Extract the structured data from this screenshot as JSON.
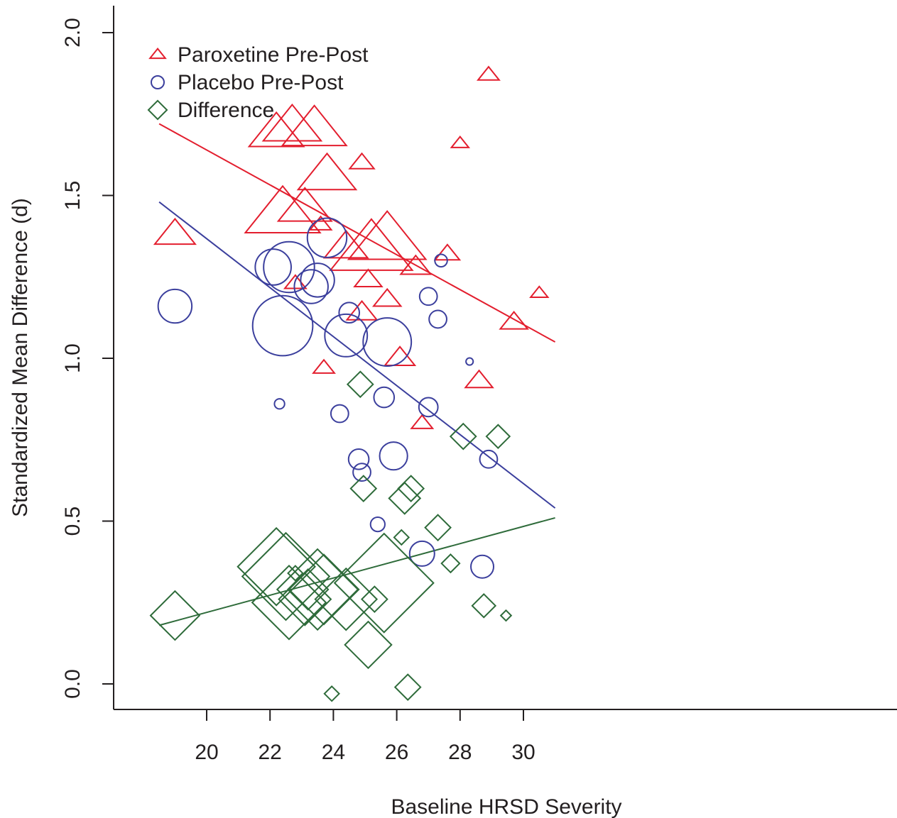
{
  "chart_data": {
    "type": "scatter",
    "title": "",
    "xlabel": "Baseline HRSD Severity",
    "ylabel": "Standardized Mean Difference (d)",
    "xlim": [
      18.5,
      31.0
    ],
    "ylim": [
      -0.08,
      2.08
    ],
    "x_ticks": [
      "20",
      "22",
      "24",
      "26",
      "28",
      "30"
    ],
    "y_ticks": [
      "0.0",
      "0.5",
      "1.0",
      "1.5",
      "2.0"
    ],
    "legend_position": "top-left",
    "series": [
      {
        "name": "Paroxetine Pre-Post",
        "marker": "triangle",
        "color": "#e31e2e",
        "points": [
          {
            "x": 19.0,
            "y": 1.38,
            "w": 2.2
          },
          {
            "x": 22.2,
            "y": 1.69,
            "w": 4.0
          },
          {
            "x": 22.7,
            "y": 1.71,
            "w": 4.5
          },
          {
            "x": 23.4,
            "y": 1.7,
            "w": 5.5
          },
          {
            "x": 23.8,
            "y": 1.56,
            "w": 4.5
          },
          {
            "x": 22.4,
            "y": 1.44,
            "w": 7.5
          },
          {
            "x": 23.1,
            "y": 1.46,
            "w": 3.8
          },
          {
            "x": 23.6,
            "y": 1.41,
            "w": 0.6
          },
          {
            "x": 22.8,
            "y": 1.23,
            "w": 0.6
          },
          {
            "x": 24.4,
            "y": 1.34,
            "w": 2.5
          },
          {
            "x": 24.9,
            "y": 1.6,
            "w": 0.8
          },
          {
            "x": 25.1,
            "y": 1.24,
            "w": 1.0
          },
          {
            "x": 24.9,
            "y": 1.14,
            "w": 1.2
          },
          {
            "x": 25.2,
            "y": 1.33,
            "w": 9.0
          },
          {
            "x": 25.7,
            "y": 1.36,
            "w": 8.0
          },
          {
            "x": 25.7,
            "y": 1.18,
            "w": 1.0
          },
          {
            "x": 26.1,
            "y": 1.0,
            "w": 1.2
          },
          {
            "x": 26.6,
            "y": 1.28,
            "w": 1.2
          },
          {
            "x": 23.7,
            "y": 0.97,
            "w": 0.6
          },
          {
            "x": 26.8,
            "y": 0.8,
            "w": 0.6
          },
          {
            "x": 27.6,
            "y": 1.32,
            "w": 0.8
          },
          {
            "x": 28.0,
            "y": 1.66,
            "w": 0.4
          },
          {
            "x": 28.6,
            "y": 0.93,
            "w": 1.0
          },
          {
            "x": 28.9,
            "y": 1.87,
            "w": 0.6
          },
          {
            "x": 29.7,
            "y": 1.11,
            "w": 1.0
          },
          {
            "x": 30.5,
            "y": 1.2,
            "w": 0.4
          }
        ]
      },
      {
        "name": "Placebo Pre-Post",
        "marker": "circle",
        "color": "#3b3f9d",
        "points": [
          {
            "x": 19.0,
            "y": 1.16,
            "w": 2.2
          },
          {
            "x": 22.1,
            "y": 1.28,
            "w": 2.5
          },
          {
            "x": 22.6,
            "y": 1.28,
            "w": 5.0
          },
          {
            "x": 22.4,
            "y": 1.1,
            "w": 7.0
          },
          {
            "x": 23.3,
            "y": 1.22,
            "w": 2.2
          },
          {
            "x": 23.5,
            "y": 1.24,
            "w": 2.2
          },
          {
            "x": 23.8,
            "y": 1.37,
            "w": 3.0
          },
          {
            "x": 24.4,
            "y": 1.07,
            "w": 3.5
          },
          {
            "x": 24.5,
            "y": 1.14,
            "w": 0.8
          },
          {
            "x": 25.7,
            "y": 1.05,
            "w": 4.5
          },
          {
            "x": 22.3,
            "y": 0.86,
            "w": 0.2
          },
          {
            "x": 24.2,
            "y": 0.83,
            "w": 0.6
          },
          {
            "x": 24.8,
            "y": 0.69,
            "w": 0.8
          },
          {
            "x": 24.9,
            "y": 0.65,
            "w": 0.6
          },
          {
            "x": 25.6,
            "y": 0.88,
            "w": 0.8
          },
          {
            "x": 25.9,
            "y": 0.7,
            "w": 1.5
          },
          {
            "x": 25.4,
            "y": 0.49,
            "w": 0.4
          },
          {
            "x": 26.8,
            "y": 0.4,
            "w": 1.2
          },
          {
            "x": 27.0,
            "y": 0.85,
            "w": 0.7
          },
          {
            "x": 27.0,
            "y": 1.19,
            "w": 0.6
          },
          {
            "x": 27.3,
            "y": 1.12,
            "w": 0.6
          },
          {
            "x": 27.4,
            "y": 1.3,
            "w": 0.3
          },
          {
            "x": 28.3,
            "y": 0.99,
            "w": 0.1
          },
          {
            "x": 28.7,
            "y": 0.36,
            "w": 1.0
          },
          {
            "x": 28.9,
            "y": 0.69,
            "w": 0.6
          }
        ]
      },
      {
        "name": "Difference",
        "marker": "diamond",
        "color": "#2e6b3a",
        "points": [
          {
            "x": 19.0,
            "y": 0.21,
            "w": 2.2
          },
          {
            "x": 22.2,
            "y": 0.36,
            "w": 5.5
          },
          {
            "x": 22.5,
            "y": 0.33,
            "w": 7.0
          },
          {
            "x": 22.6,
            "y": 0.25,
            "w": 5.0
          },
          {
            "x": 22.8,
            "y": 0.34,
            "w": 0.2
          },
          {
            "x": 23.1,
            "y": 0.26,
            "w": 2.5
          },
          {
            "x": 23.2,
            "y": 0.29,
            "w": 1.5
          },
          {
            "x": 23.5,
            "y": 0.29,
            "w": 6.0
          },
          {
            "x": 23.7,
            "y": 0.29,
            "w": 4.5
          },
          {
            "x": 24.4,
            "y": 0.26,
            "w": 3.5
          },
          {
            "x": 24.85,
            "y": 0.92,
            "w": 0.6
          },
          {
            "x": 24.95,
            "y": 0.6,
            "w": 0.6
          },
          {
            "x": 25.1,
            "y": 0.12,
            "w": 2.0
          },
          {
            "x": 25.3,
            "y": 0.26,
            "w": 0.6
          },
          {
            "x": 25.6,
            "y": 0.31,
            "w": 9.0
          },
          {
            "x": 26.15,
            "y": 0.45,
            "w": 0.2
          },
          {
            "x": 26.25,
            "y": 0.57,
            "w": 0.9
          },
          {
            "x": 26.45,
            "y": 0.6,
            "w": 0.6
          },
          {
            "x": 23.95,
            "y": -0.03,
            "w": 0.2
          },
          {
            "x": 26.35,
            "y": -0.01,
            "w": 0.6
          },
          {
            "x": 27.3,
            "y": 0.48,
            "w": 0.6
          },
          {
            "x": 27.7,
            "y": 0.37,
            "w": 0.3
          },
          {
            "x": 28.1,
            "y": 0.76,
            "w": 0.6
          },
          {
            "x": 28.75,
            "y": 0.24,
            "w": 0.5
          },
          {
            "x": 29.2,
            "y": 0.76,
            "w": 0.5
          },
          {
            "x": 29.45,
            "y": 0.21,
            "w": 0.1
          }
        ]
      }
    ],
    "trend_lines": [
      {
        "series": "Paroxetine Pre-Post",
        "x": [
          18.5,
          31.0
        ],
        "y": [
          1.72,
          1.05
        ],
        "color": "#e31e2e"
      },
      {
        "series": "Placebo Pre-Post",
        "x": [
          18.5,
          31.0
        ],
        "y": [
          1.48,
          0.54
        ],
        "color": "#3b3f9d"
      },
      {
        "series": "Difference",
        "x": [
          18.5,
          31.0
        ],
        "y": [
          0.18,
          0.51
        ],
        "color": "#2e6b3a"
      }
    ]
  }
}
